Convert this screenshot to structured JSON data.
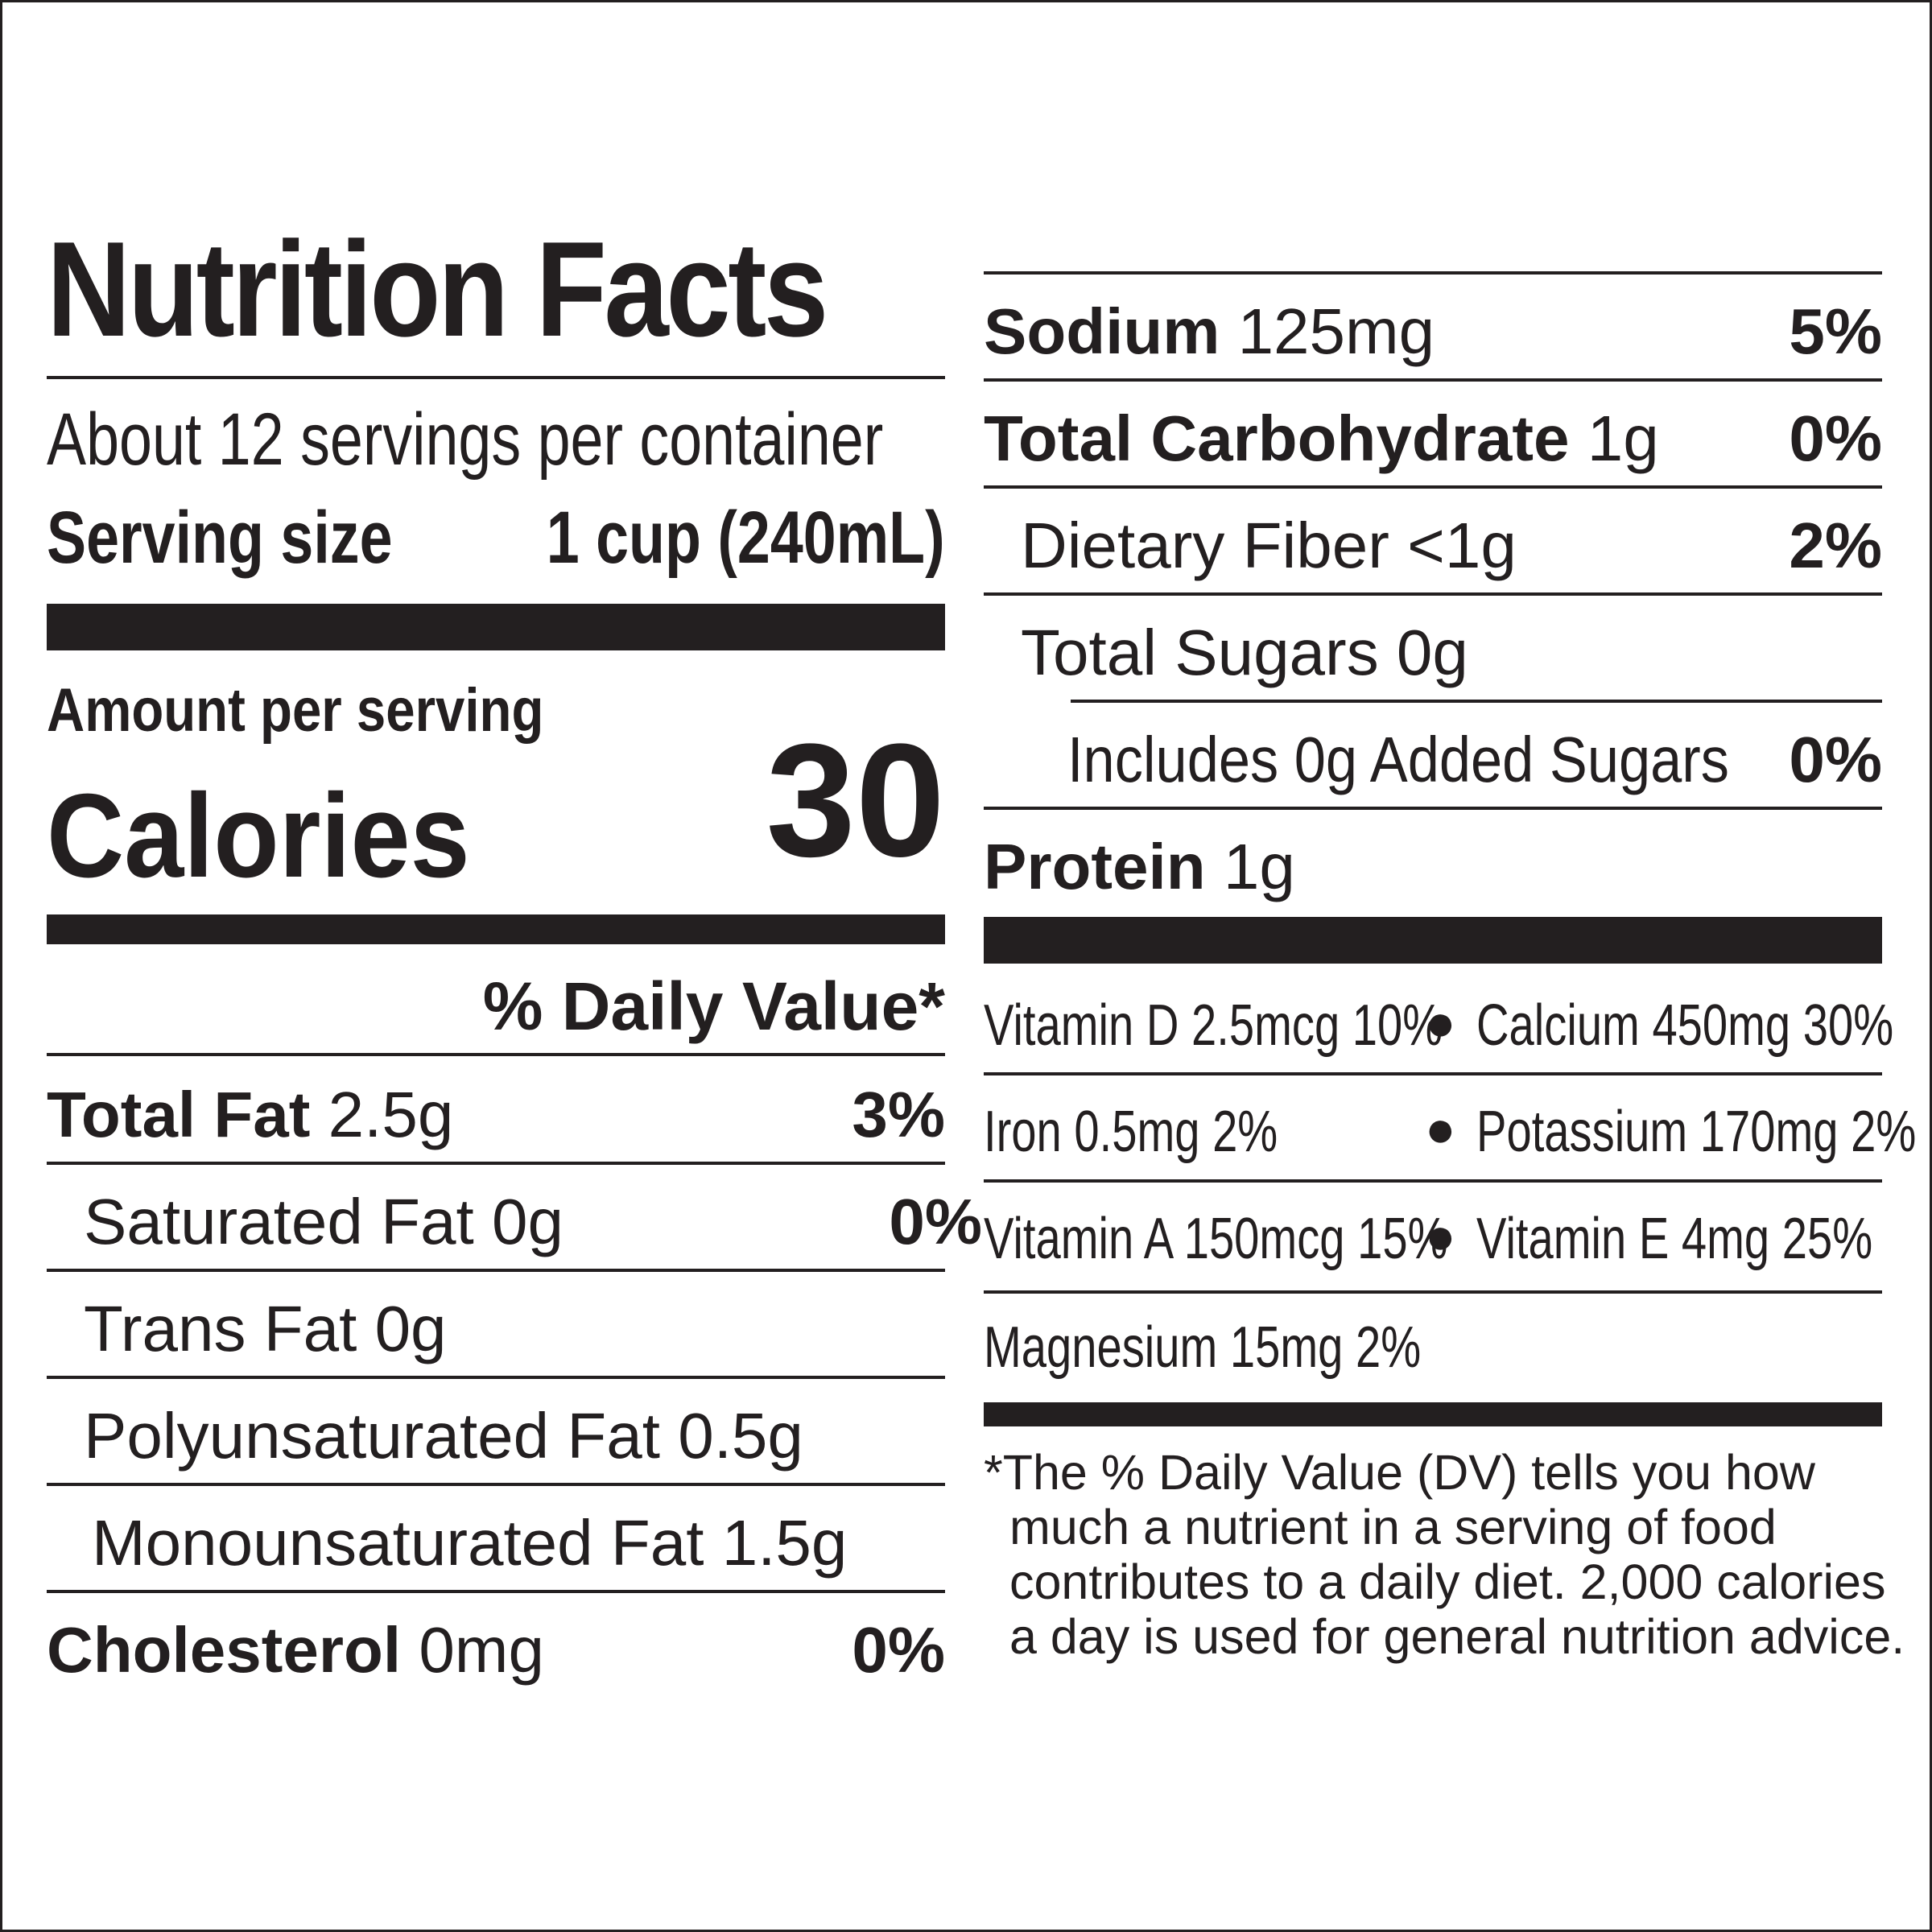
{
  "label": {
    "title": "Nutrition Facts",
    "servings_per_container": "About 12 servings per container",
    "serving_size_label": "Serving size",
    "serving_size_value": "1 cup (240mL)",
    "amount_per_serving": "Amount per serving",
    "calories_label": "Calories",
    "calories_value": "30",
    "daily_value_header": "% Daily Value*"
  },
  "left_nutrients": [
    {
      "name": "Total Fat",
      "amount": "2.5g",
      "dv": "3%"
    },
    {
      "name": "Saturated Fat 0g",
      "amount": "",
      "dv": "0%"
    },
    {
      "name": "Trans Fat 0g",
      "amount": "",
      "dv": ""
    },
    {
      "name": "Polyunsaturated Fat 0.5g",
      "amount": "",
      "dv": ""
    },
    {
      "name": "Monounsaturated Fat 1.5g",
      "amount": "",
      "dv": ""
    },
    {
      "name": "Cholesterol",
      "amount": "0mg",
      "dv": "0%"
    }
  ],
  "right_nutrients": [
    {
      "name": "Sodium",
      "amount": "125mg",
      "dv": "5%"
    },
    {
      "name": "Total Carbohydrate",
      "amount": "1g",
      "dv": "0%"
    },
    {
      "name": "Dietary Fiber <1g",
      "amount": "",
      "dv": "2%"
    },
    {
      "name": "Total Sugars 0g",
      "amount": "",
      "dv": ""
    },
    {
      "name": "Includes 0g Added Sugars",
      "amount": "",
      "dv": "0%"
    },
    {
      "name": "Protein",
      "amount": "1g",
      "dv": ""
    }
  ],
  "vitamins": [
    {
      "left": "Vitamin D 2.5mcg 10%",
      "right": "Calcium 450mg 30%"
    },
    {
      "left": "Iron 0.5mg 2%",
      "right": "Potassium 170mg 2%"
    },
    {
      "left": "Vitamin A 150mcg 15%",
      "right": "Vitamin E 4mg 25%"
    },
    {
      "left": "Magnesium 15mg 2%",
      "right": ""
    }
  ],
  "bullet": "●",
  "footnote": [
    "*The % Daily Value (DV) tells you how",
    "much a nutrient in a serving of food",
    "contributes to a daily diet. 2,000 calories",
    "a day is used for general nutrition advice."
  ]
}
